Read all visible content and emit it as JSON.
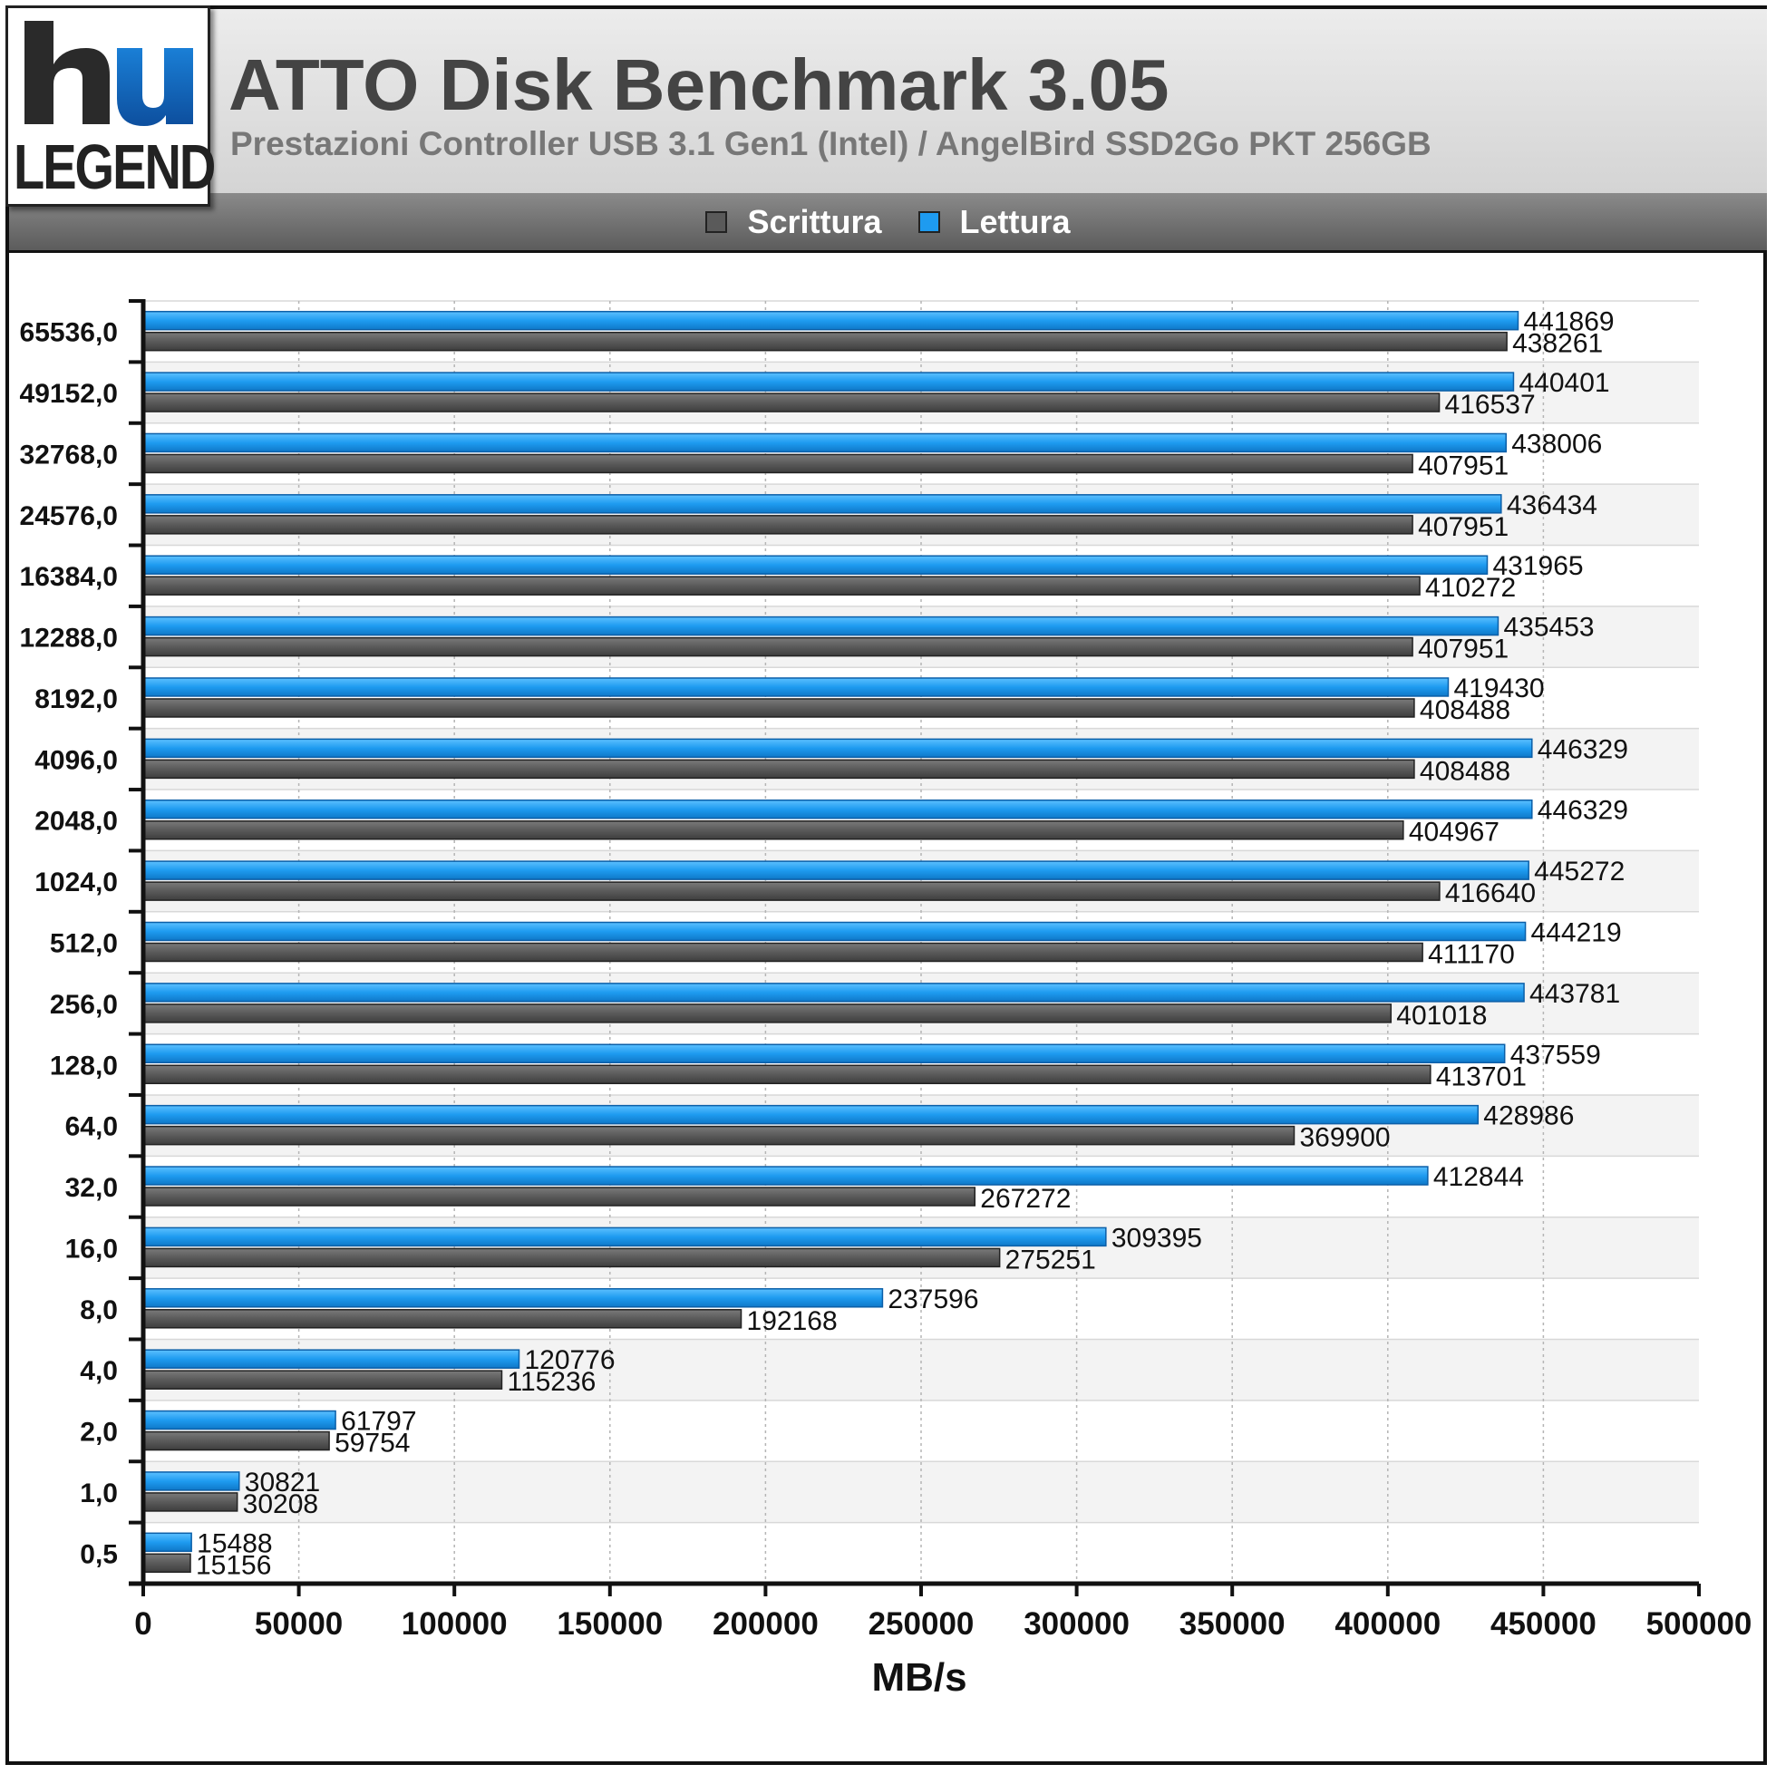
{
  "header": {
    "title": "ATTO Disk Benchmark 3.05",
    "subtitle": "Prestazioni Controller USB 3.1 Gen1 (Intel) / AngelBird SSD2Go PKT 256GB"
  },
  "logo": {
    "text": "LEGEND"
  },
  "colors": {
    "write": "#5a5a5a",
    "read": "#1e9bf0"
  },
  "chart_data": {
    "type": "bar",
    "orientation": "horizontal",
    "title": "ATTO Disk Benchmark 3.05",
    "subtitle": "Prestazioni Controller USB 3.1 Gen1 (Intel) / AngelBird SSD2Go PKT 256GB",
    "xlabel": "MB/s",
    "ylabel": "",
    "xlim": [
      0,
      500000
    ],
    "xticks": [
      "0",
      "50000",
      "100000",
      "150000",
      "200000",
      "250000",
      "300000",
      "350000",
      "400000",
      "450000",
      "500000"
    ],
    "legend_position": "top",
    "grid": true,
    "categories": [
      "65536,0",
      "49152,0",
      "32768,0",
      "24576,0",
      "16384,0",
      "12288,0",
      "8192,0",
      "4096,0",
      "2048,0",
      "1024,0",
      "512,0",
      "256,0",
      "128,0",
      "64,0",
      "32,0",
      "16,0",
      "8,0",
      "4,0",
      "2,0",
      "1,0",
      "0,5"
    ],
    "series": [
      {
        "name": "Scrittura",
        "color": "#5a5a5a",
        "values": [
          438261,
          416537,
          407951,
          407951,
          410272,
          407951,
          408488,
          408488,
          404967,
          416640,
          411170,
          401018,
          413701,
          369900,
          267272,
          275251,
          192168,
          115236,
          59754,
          30208,
          15156
        ]
      },
      {
        "name": "Lettura",
        "color": "#1e9bf0",
        "values": [
          441869,
          440401,
          438006,
          436434,
          431965,
          435453,
          419430,
          446329,
          446329,
          445272,
          444219,
          443781,
          437559,
          428986,
          412844,
          309395,
          237596,
          120776,
          61797,
          30821,
          15488
        ]
      }
    ]
  }
}
